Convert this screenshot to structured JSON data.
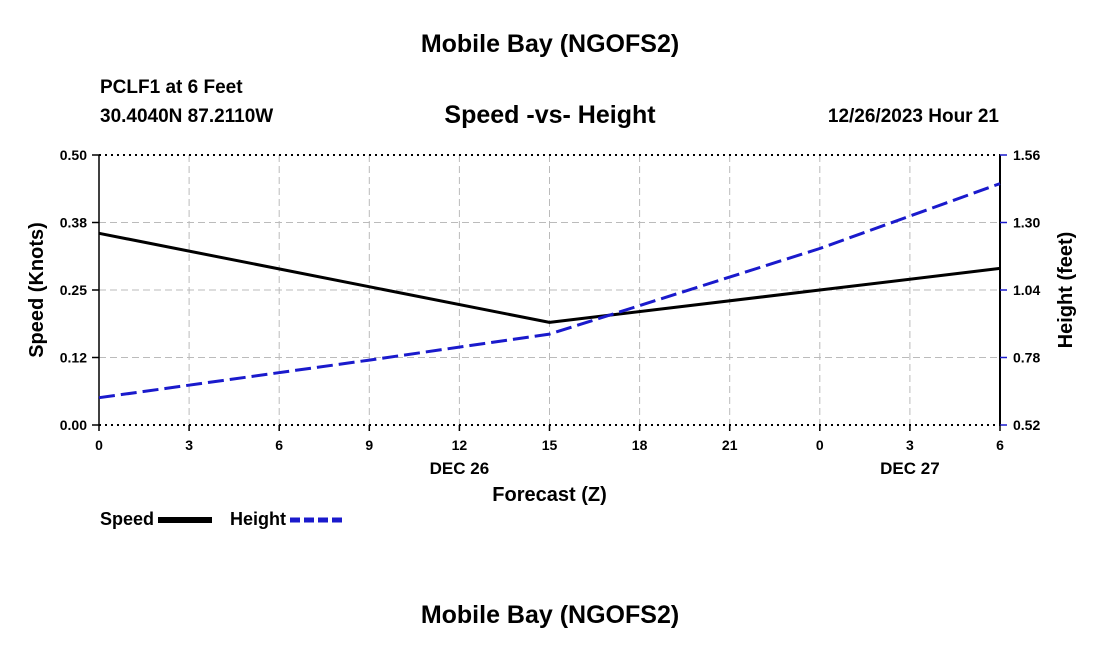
{
  "header": {
    "title": "Mobile Bay (NGOFS2)",
    "station": "PCLF1 at 6 Feet",
    "coords": "30.4040N  87.2110W",
    "chart_title": "Speed -vs- Height",
    "datetime": "12/26/2023 Hour 21"
  },
  "footer": {
    "title": "Mobile Bay (NGOFS2)"
  },
  "legend": {
    "speed_label": "Speed",
    "height_label": "Height"
  },
  "chart_data": {
    "type": "line",
    "title": "Speed -vs- Height",
    "xlabel": "Forecast (Z)",
    "ylabel_left": "Speed (Knots)",
    "ylabel_right": "Height (feet)",
    "x_hours": [
      0,
      3,
      6,
      9,
      12,
      15,
      18,
      21,
      24,
      27,
      30
    ],
    "x_tick_labels": [
      "0",
      "3",
      "6",
      "9",
      "12",
      "15",
      "18",
      "21",
      "0",
      "3",
      "6"
    ],
    "date_labels": [
      {
        "hour": 12,
        "label": "DEC 26"
      },
      {
        "hour": 27,
        "label": "DEC 27"
      }
    ],
    "y_left_ticks": [
      "0.00",
      "0.12",
      "0.25",
      "0.38",
      "0.50"
    ],
    "y_left_range": [
      0,
      0.5
    ],
    "y_right_ticks": [
      "0.52",
      "0.78",
      "1.04",
      "1.30",
      "1.56"
    ],
    "y_right_range": [
      0.52,
      1.56
    ],
    "x_range": [
      0,
      30
    ],
    "grid": true,
    "series": [
      {
        "name": "Speed",
        "axis": "left",
        "color": "#000000",
        "style": "solid",
        "points": [
          [
            0,
            0.355
          ],
          [
            15,
            0.19
          ],
          [
            24,
            0.25
          ],
          [
            30,
            0.29
          ]
        ]
      },
      {
        "name": "Height",
        "axis": "right",
        "color": "#1a1acc",
        "style": "dashed",
        "points": [
          [
            0,
            0.625
          ],
          [
            9,
            0.77
          ],
          [
            15,
            0.87
          ],
          [
            18,
            0.98
          ],
          [
            24,
            1.2
          ],
          [
            30,
            1.45
          ]
        ]
      }
    ]
  }
}
